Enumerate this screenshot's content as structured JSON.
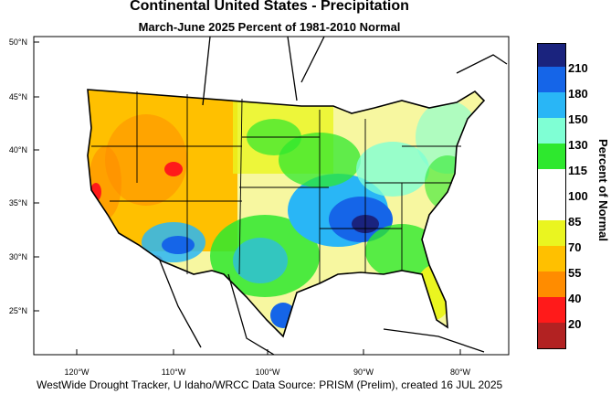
{
  "title": "Continental United States - Precipitation",
  "subtitle": "March-June 2025  Percent of 1981-2010 Normal",
  "footer": "WestWide Drought Tracker, U Idaho/WRCC Data Source: PRISM (Prelim), created 16 JUL 2025",
  "lat_labels": [
    "50°N",
    "45°N",
    "40°N",
    "35°N",
    "30°N",
    "25°N"
  ],
  "lon_labels": [
    "120°W",
    "110°W",
    "100°W",
    "90°W",
    "80°W"
  ],
  "legend": {
    "title": "Percent of Normal",
    "bins": [
      {
        "label": "210",
        "color": "#1a237e"
      },
      {
        "label": "180",
        "color": "#1565e8"
      },
      {
        "label": "150",
        "color": "#29b6f6"
      },
      {
        "label": "130",
        "color": "#7fffd4"
      },
      {
        "label": "115",
        "color": "#2ee82e"
      },
      {
        "label": "100",
        "color": "#ffffff"
      },
      {
        "label": "85",
        "color": "#ffffff"
      },
      {
        "label": "70",
        "color": "#eaf520"
      },
      {
        "label": "55",
        "color": "#ffc000"
      },
      {
        "label": "40",
        "color": "#ff8c00"
      },
      {
        "label": "20",
        "color": "#ff1a1a"
      },
      {
        "label": "",
        "color": "#b22222"
      }
    ]
  }
}
